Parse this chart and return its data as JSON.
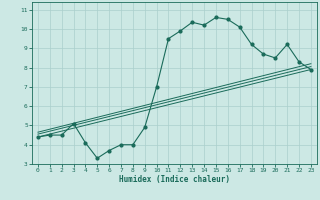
{
  "bg_color": "#cce8e4",
  "grid_color": "#aacfcc",
  "line_color": "#1a6b5a",
  "xlabel": "Humidex (Indice chaleur)",
  "xlim": [
    -0.5,
    23.5
  ],
  "ylim": [
    3,
    11.4
  ],
  "xticks": [
    0,
    1,
    2,
    3,
    4,
    5,
    6,
    7,
    8,
    9,
    10,
    11,
    12,
    13,
    14,
    15,
    16,
    17,
    18,
    19,
    20,
    21,
    22,
    23
  ],
  "yticks": [
    3,
    4,
    5,
    6,
    7,
    8,
    9,
    10,
    11
  ],
  "main_x": [
    0,
    1,
    2,
    3,
    4,
    5,
    6,
    7,
    8,
    9,
    10,
    11,
    12,
    13,
    14,
    15,
    16,
    17,
    18,
    19,
    20,
    21,
    22,
    23
  ],
  "main_y": [
    4.4,
    4.5,
    4.5,
    5.1,
    4.1,
    3.3,
    3.7,
    4.0,
    4.0,
    4.9,
    7.0,
    9.5,
    9.9,
    10.35,
    10.2,
    10.6,
    10.5,
    10.1,
    9.2,
    8.7,
    8.5,
    9.2,
    8.3,
    7.9
  ],
  "line1_x": [
    0,
    23
  ],
  "line1_y": [
    4.4,
    7.9
  ],
  "line2_x": [
    0,
    23
  ],
  "line2_y": [
    4.55,
    8.05
  ],
  "line3_x": [
    0,
    23
  ],
  "line3_y": [
    4.65,
    8.2
  ]
}
